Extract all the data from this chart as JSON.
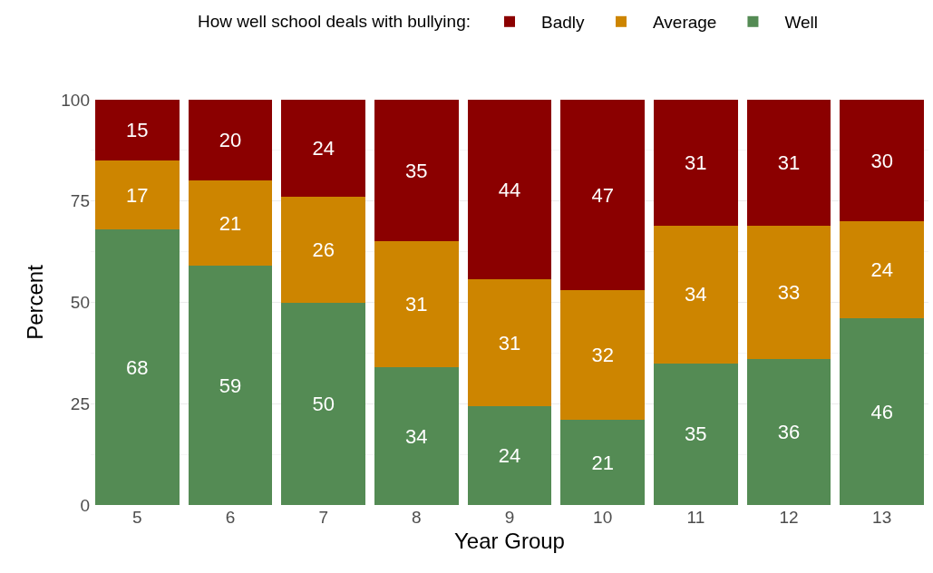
{
  "chart_data": {
    "type": "bar",
    "stacked": true,
    "xlabel": "Year Group",
    "ylabel": "Percent",
    "legend_title": "How well school deals with bullying:",
    "legend": "top",
    "categories": [
      "5",
      "6",
      "7",
      "8",
      "9",
      "10",
      "11",
      "12",
      "13"
    ],
    "series": [
      {
        "name": "Well",
        "color": "#548b54",
        "values": [
          68,
          59,
          50,
          34,
          24.4,
          21,
          35,
          36,
          46
        ],
        "value_labels": [
          "68",
          "59",
          "50",
          "34",
          "24",
          "21",
          "35",
          "36",
          "46"
        ]
      },
      {
        "name": "Average",
        "color": "#cd8500",
        "values": [
          17,
          21,
          26,
          31,
          31.2,
          32,
          34,
          33,
          24
        ],
        "value_labels": [
          "17",
          "21",
          "26",
          "31",
          "31",
          "32",
          "34",
          "33",
          "24"
        ]
      },
      {
        "name": "Badly",
        "color": "#8b0000",
        "values": [
          15,
          20,
          24,
          35,
          44.4,
          47,
          31,
          31,
          30
        ],
        "value_labels": [
          "15",
          "20",
          "24",
          "35",
          "44",
          "47",
          "31",
          "31",
          "30"
        ]
      }
    ],
    "ylim": [
      0,
      100
    ],
    "yticks": [
      0,
      25,
      50,
      75,
      100
    ],
    "grid": true
  }
}
